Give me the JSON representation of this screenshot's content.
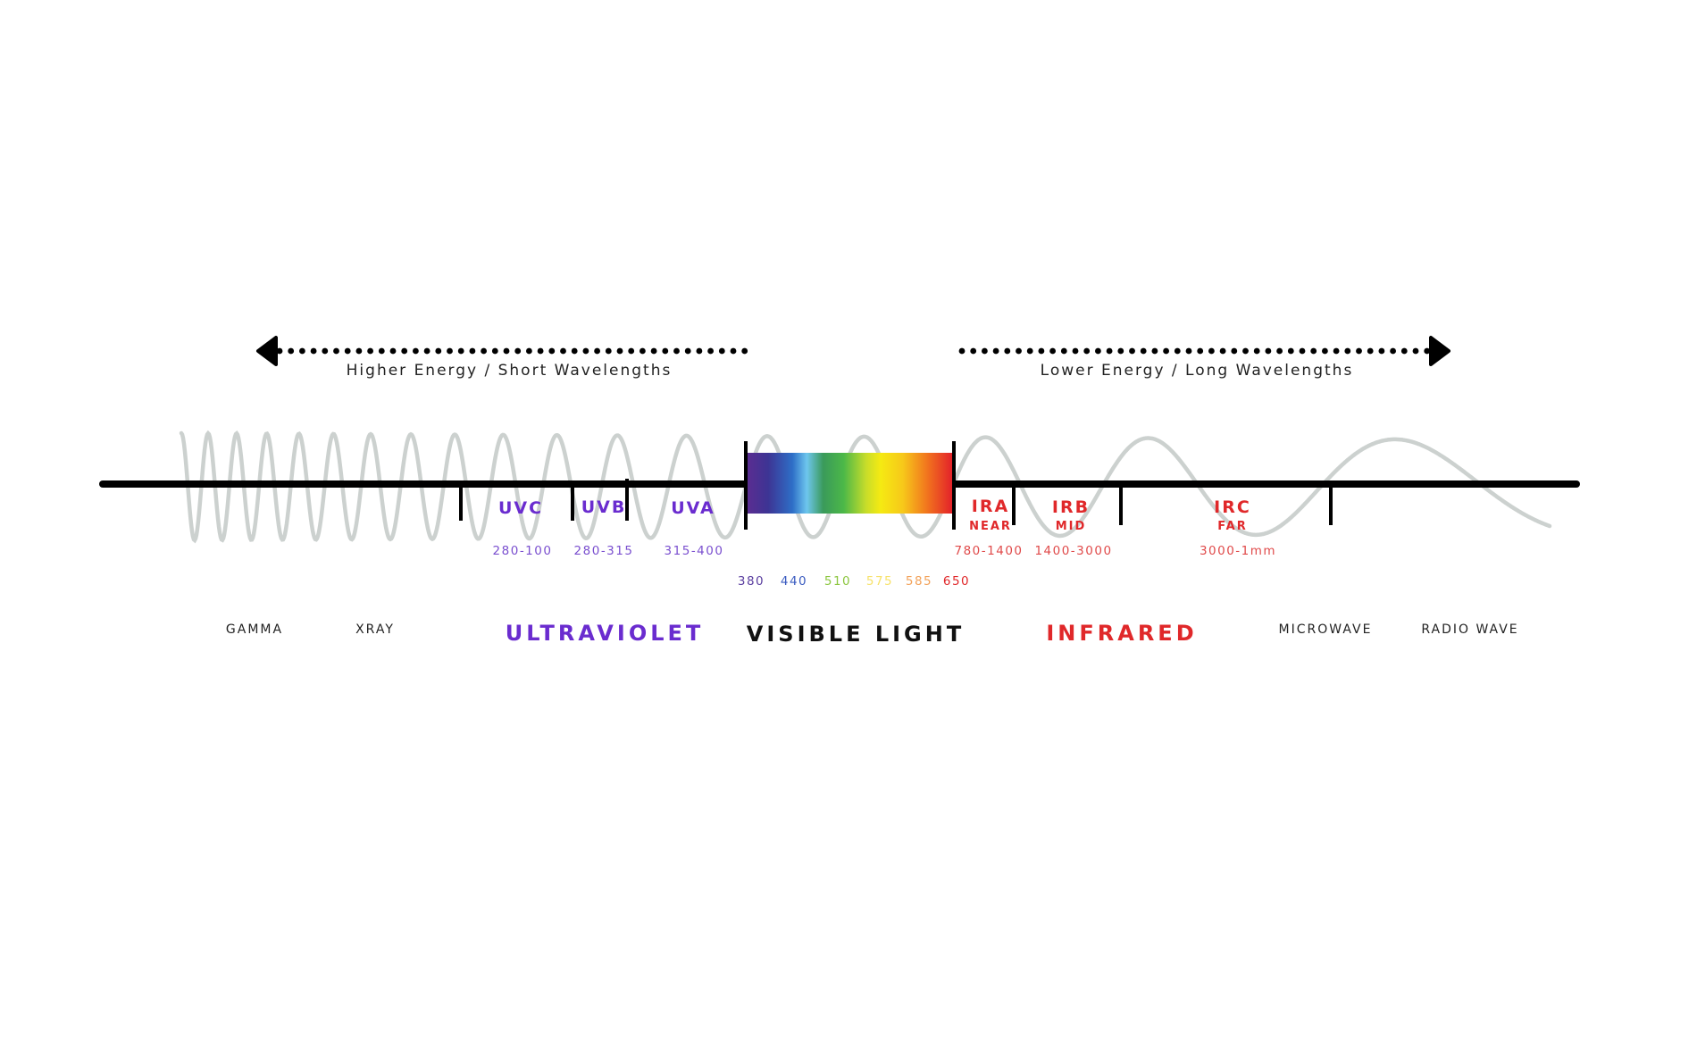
{
  "colors": {
    "uv": "#6a2ccf",
    "ir": "#e0282a",
    "axis": "#000000",
    "wave": "#c9cfcc"
  },
  "directions": {
    "left": {
      "label": "Higher Energy / Short Wavelengths",
      "icon": "arrow-left-icon"
    },
    "right": {
      "label": "Lower Energy / Long Wavelengths",
      "icon": "arrow-right-icon"
    }
  },
  "subbands": {
    "uvc": {
      "name": "UVC",
      "range": "280-100"
    },
    "uvb": {
      "name": "UVB",
      "range": "280-315"
    },
    "uva": {
      "name": "UVA",
      "range": "315-400"
    },
    "ira": {
      "name": "IRA",
      "sub": "NEAR",
      "range": "780-1400"
    },
    "irb": {
      "name": "IRB",
      "sub": "MID",
      "range": "1400-3000"
    },
    "irc": {
      "name": "IRC",
      "sub": "FAR",
      "range": "3000-1mm"
    }
  },
  "visible_ticks": [
    {
      "label": "380",
      "color": "#5b3fa0"
    },
    {
      "label": "440",
      "color": "#3a5bc0"
    },
    {
      "label": "510",
      "color": "#8cc63f"
    },
    {
      "label": "575",
      "color": "#f7e26b"
    },
    {
      "label": "585",
      "color": "#f2a25a"
    },
    {
      "label": "650",
      "color": "#e0282a"
    }
  ],
  "bands": {
    "gamma": "GAMMA",
    "xray": "XRAY",
    "ultraviolet": "ULTRAVIOLET",
    "visible": "VISIBLE LIGHT",
    "infrared": "INFRARED",
    "microwave": "MICROWAVE",
    "radio": "RADIO WAVE"
  }
}
